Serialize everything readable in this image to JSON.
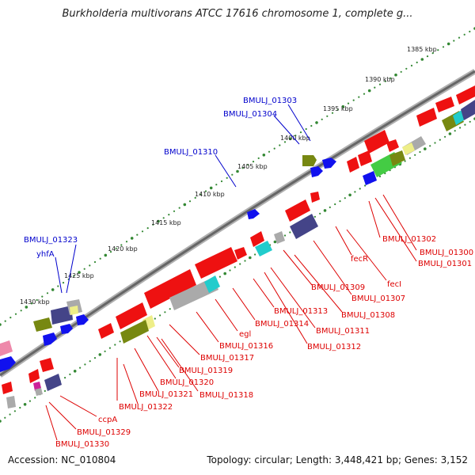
{
  "title": "Burkholderia multivorans ATCC 17616 chromosome 1, complete g...",
  "footer": {
    "accession": "Accession: NC_010804",
    "info": "Topology: circular; Length: 3,448,421 bp; Genes: 3,152"
  },
  "colors": {
    "forward_label": "#0000cc",
    "reverse_label": "#dd0000",
    "backbone": "#666666",
    "ruler_dots": "#338833",
    "gene_red": "#ee1111",
    "gene_blue": "#1111ee",
    "gene_olive": "#778811",
    "gene_navy": "#444488",
    "gene_grey": "#aaaaaa",
    "gene_cyan": "#22cccc",
    "gene_pink": "#ee88aa",
    "gene_yellow": "#eeee88"
  },
  "ruler_ticks": [
    "1385 kbp",
    "1390 kbp",
    "1395 kbp",
    "1400 kbp",
    "1405 kbp",
    "1410 kbp",
    "1415 kbp",
    "1420 kbp",
    "1425 kbp",
    "1430 kbp"
  ],
  "forward_labels": [
    "BMULJ_01303",
    "BMULJ_01304",
    "BMULJ_01310",
    "BMULJ_01323",
    "yhfA"
  ],
  "reverse_labels": [
    "BMULJ_01302",
    "BMULJ_01300",
    "BMULJ_01301",
    "fecR",
    "fecI",
    "BMULJ_01309",
    "BMULJ_01307",
    "BMULJ_01308",
    "BMULJ_01313",
    "BMULJ_01311",
    "BMULJ_01314",
    "BMULJ_01312",
    "egl",
    "BMULJ_01316",
    "BMULJ_01317",
    "BMULJ_01319",
    "BMULJ_01320",
    "BMULJ_01321",
    "BMULJ_01318",
    "BMULJ_01322",
    "ccpA",
    "BMULJ_01329",
    "BMULJ_01330"
  ]
}
